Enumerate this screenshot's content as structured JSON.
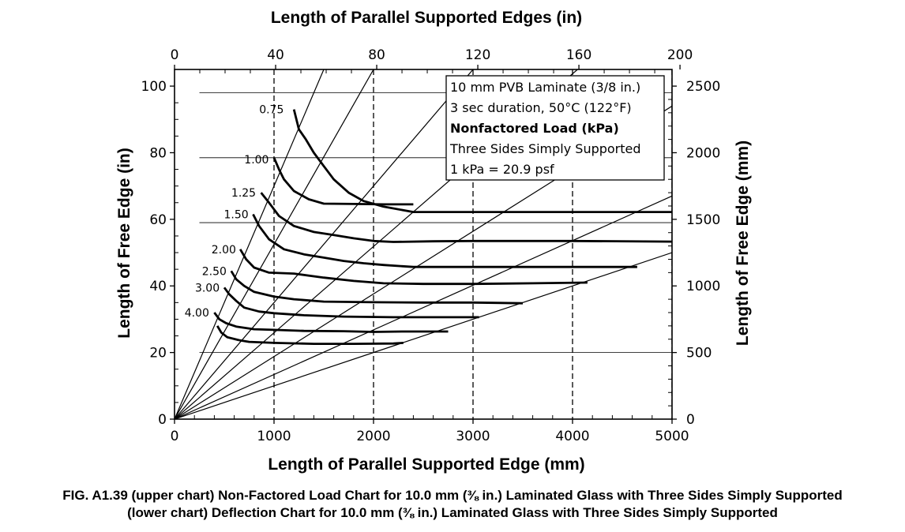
{
  "chart_data": {
    "type": "line",
    "title": "",
    "xlabel": "Length of Parallel Supported Edge (mm)",
    "ylabel": "Length of Free Edge (in)",
    "x2label": "Length of Parallel Supported Edges (in)",
    "y2label": "Length of Free Edge (mm)",
    "xlim_mm": [
      0,
      5000
    ],
    "ylim_in": [
      0,
      105
    ],
    "x_ticks_mm": [
      0,
      1000,
      2000,
      3000,
      4000,
      5000
    ],
    "y_ticks_in": [
      0,
      20,
      40,
      60,
      80,
      100
    ],
    "x2_ticks_in": [
      0,
      40,
      80,
      120,
      160,
      200
    ],
    "y2_ticks_mm": [
      0,
      500,
      1000,
      1500,
      2000,
      2500
    ],
    "y2_scale_in_per_mm": 0.04,
    "grid": true,
    "info_box": [
      {
        "text": "10 mm PVB Laminate (3/8 in.)",
        "bold": false
      },
      {
        "text": "3 sec duration, 50°C (122°F)",
        "bold": false
      },
      {
        "text": "Nonfactored Load (kPa)",
        "bold": true
      },
      {
        "text": "Three Sides Simply Supported",
        "bold": false
      },
      {
        "text": "1 kPa = 20.9 psf",
        "bold": false
      }
    ],
    "aspect_ratio_lines": [
      {
        "x": 1500,
        "y": 105
      },
      {
        "x": 2000,
        "y": 105
      },
      {
        "x": 3000,
        "y": 105
      },
      {
        "x": 4050,
        "y": 105
      },
      {
        "x": 5000,
        "y": 94
      },
      {
        "x": 5000,
        "y": 67
      },
      {
        "x": 5000,
        "y": 50
      }
    ],
    "series": [
      {
        "name": "0.75",
        "label_x": 1130,
        "label_y": 93,
        "points": [
          [
            1200,
            93
          ],
          [
            1250,
            87
          ],
          [
            1320,
            84
          ],
          [
            1400,
            80
          ],
          [
            1500,
            76
          ],
          [
            1600,
            72
          ],
          [
            1750,
            68
          ],
          [
            1900,
            65.5
          ],
          [
            2100,
            63.8
          ],
          [
            2400,
            62.2
          ],
          [
            3000,
            62.2
          ],
          [
            4000,
            62.2
          ],
          [
            5000,
            62.2
          ]
        ]
      },
      {
        "name": "1.00",
        "label_x": 980,
        "label_y": 78,
        "points": [
          [
            1000,
            78.5
          ],
          [
            1050,
            75
          ],
          [
            1100,
            72
          ],
          [
            1200,
            68.5
          ],
          [
            1350,
            66
          ],
          [
            1500,
            64.7
          ],
          [
            1800,
            64.6
          ],
          [
            2100,
            64.5
          ],
          [
            2400,
            64.5
          ]
        ]
      },
      {
        "name": "1.25",
        "label_x": 850,
        "label_y": 68,
        "points": [
          [
            870,
            68
          ],
          [
            950,
            65
          ],
          [
            1050,
            61
          ],
          [
            1200,
            58
          ],
          [
            1400,
            56.2
          ],
          [
            1600,
            55.3
          ],
          [
            1800,
            54.3
          ],
          [
            2000,
            53.5
          ],
          [
            2200,
            53.2
          ],
          [
            2600,
            53.4
          ],
          [
            3000,
            53.5
          ],
          [
            4000,
            53.5
          ],
          [
            5000,
            53.3
          ]
        ]
      },
      {
        "name": "1.50",
        "label_x": 775,
        "label_y": 61.5,
        "points": [
          [
            790,
            61.5
          ],
          [
            850,
            58
          ],
          [
            950,
            54
          ],
          [
            1100,
            51
          ],
          [
            1300,
            49.5
          ],
          [
            1500,
            48.5
          ],
          [
            1700,
            47.5
          ],
          [
            1900,
            46.8
          ],
          [
            2100,
            46.3
          ],
          [
            2400,
            45.7
          ],
          [
            3000,
            45.7
          ],
          [
            4000,
            45.7
          ],
          [
            4650,
            45.7
          ]
        ]
      },
      {
        "name": "2.00",
        "label_x": 650,
        "label_y": 51,
        "points": [
          [
            660,
            51
          ],
          [
            720,
            48
          ],
          [
            800,
            45.5
          ],
          [
            950,
            44
          ],
          [
            1200,
            43.7
          ],
          [
            1500,
            42.5
          ],
          [
            1800,
            41.5
          ],
          [
            2100,
            40.8
          ],
          [
            2500,
            40.6
          ],
          [
            3000,
            40.6
          ],
          [
            3600,
            40.8
          ],
          [
            4150,
            41
          ]
        ]
      },
      {
        "name": "2.50",
        "label_x": 555,
        "label_y": 44.5,
        "points": [
          [
            570,
            44.5
          ],
          [
            620,
            42
          ],
          [
            700,
            40
          ],
          [
            800,
            38.2
          ],
          [
            1000,
            36.8
          ],
          [
            1200,
            36
          ],
          [
            1500,
            35.3
          ],
          [
            2000,
            35.1
          ],
          [
            2500,
            35
          ],
          [
            3000,
            35
          ],
          [
            3500,
            34.8
          ]
        ]
      },
      {
        "name": "3.00",
        "label_x": 485,
        "label_y": 39.5,
        "points": [
          [
            500,
            39.5
          ],
          [
            550,
            37.5
          ],
          [
            620,
            35.5
          ],
          [
            700,
            33.5
          ],
          [
            850,
            32.3
          ],
          [
            1000,
            31.8
          ],
          [
            1300,
            31.2
          ],
          [
            1700,
            30.8
          ],
          [
            2200,
            30.6
          ],
          [
            2700,
            30.6
          ],
          [
            3060,
            30.6
          ]
        ]
      },
      {
        "name": "4.00",
        "label_x": 380,
        "label_y": 32,
        "points": [
          [
            400,
            32
          ],
          [
            450,
            30
          ],
          [
            520,
            28.8
          ],
          [
            620,
            27.8
          ],
          [
            800,
            27
          ],
          [
            1000,
            26.8
          ],
          [
            1300,
            26.5
          ],
          [
            1700,
            26.4
          ],
          [
            2000,
            26.2
          ],
          [
            2300,
            26.3
          ],
          [
            2750,
            26.3
          ]
        ]
      },
      {
        "name": "",
        "label_x": 0,
        "label_y": 0,
        "points": [
          [
            650,
            23.7
          ],
          [
            750,
            23.2
          ],
          [
            1000,
            22.9
          ],
          [
            1400,
            22.6
          ],
          [
            1800,
            22.6
          ],
          [
            2200,
            22.7
          ],
          [
            2300,
            22.9
          ]
        ]
      }
    ],
    "extra_curve_start": [
      [
        430,
        28
      ],
      [
        470,
        26
      ],
      [
        530,
        24.6
      ],
      [
        650,
        23.7
      ]
    ],
    "fifth_curve_comment": ""
  },
  "caption": {
    "line1": "FIG. A1.39 (upper chart) Non-Factored Load Chart for 10.0 mm (⅜ in.) Laminated Glass with Three Sides Simply Supported",
    "line2": "(lower chart) Deflection Chart for 10.0 mm (⅜ in.) Laminated Glass with Three Sides Simply Supported"
  }
}
